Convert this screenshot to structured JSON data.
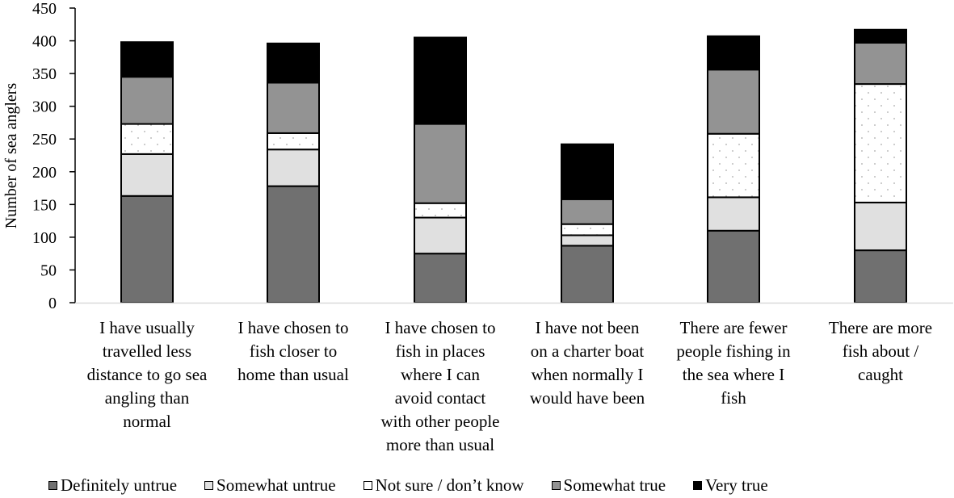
{
  "chart_data": {
    "type": "bar",
    "stacked": true,
    "title": "",
    "xlabel": "",
    "ylabel": "Number of sea anglers",
    "ylim": [
      0,
      450
    ],
    "yticks": [
      0,
      50,
      100,
      150,
      200,
      250,
      300,
      350,
      400,
      450
    ],
    "grid": false,
    "legend_position": "bottom",
    "categories": [
      "I have usually travelled less distance to go sea angling than normal",
      "I have chosen to fish closer to home than usual",
      "I have chosen to fish in places where I can avoid contact with other people more than usual",
      "I have not been on a charter boat when normally I would have been",
      "There are fewer people fishing in the sea where I fish",
      "There are more fish about / caught"
    ],
    "category_labels_wrapped": [
      "I have usually\ntravelled less\ndistance to go sea\nangling than\nnormal",
      "I have chosen to\nfish closer to\nhome than usual",
      "I have chosen to\nfish in places\nwhere I can\navoid contact\nwith other people\nmore than usual",
      "I have not been\non a charter boat\nwhen normally I\nwould have been",
      "There are fewer\npeople fishing in\nthe sea where I\nfish",
      "There are more\nfish about /\ncaught"
    ],
    "series": [
      {
        "name": "Definitely untrue",
        "color": "#707070",
        "pattern": "solid",
        "values": [
          163,
          178,
          75,
          87,
          110,
          80
        ]
      },
      {
        "name": "Somewhat untrue",
        "color": "#e0e0e0",
        "pattern": "solid",
        "values": [
          64,
          56,
          55,
          16,
          51,
          73
        ]
      },
      {
        "name": "Not sure / don’t know",
        "color": "#ffffff",
        "pattern": "dotted",
        "values": [
          46,
          25,
          22,
          17,
          97,
          181
        ]
      },
      {
        "name": "Somewhat true",
        "color": "#939393",
        "pattern": "solid",
        "values": [
          72,
          77,
          121,
          38,
          98,
          63
        ]
      },
      {
        "name": "Very true",
        "color": "#000000",
        "pattern": "solid",
        "values": [
          53,
          60,
          132,
          84,
          51,
          20
        ]
      }
    ]
  }
}
